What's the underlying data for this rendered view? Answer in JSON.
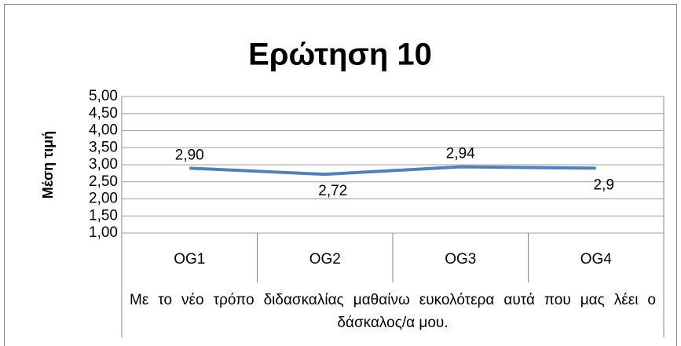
{
  "chart_data": {
    "type": "line",
    "title": "Ερώτηση 10",
    "y_label": "Μέση τιμή",
    "x_label": "Με το νέο τρόπο διδασκαλίας μαθαίνω ευκολότερα αυτά που μας λέει ο δάσκαλος/α μου.",
    "categories": [
      "OG1",
      "OG2",
      "OG3",
      "OG4"
    ],
    "values": [
      2.9,
      2.72,
      2.94,
      2.9
    ],
    "value_labels": [
      "2,90",
      "2,72",
      "2,94",
      "2,9"
    ],
    "color": "#4f81bd",
    "ylim": [
      1,
      5
    ],
    "yticks": [
      {
        "value": 1,
        "label": "1,00"
      },
      {
        "value": 1.5,
        "label": "1,50"
      },
      {
        "value": 2,
        "label": "2,00"
      },
      {
        "value": 2.5,
        "label": "2,50"
      },
      {
        "value": 3,
        "label": "3,00"
      },
      {
        "value": 3.5,
        "label": "3,50"
      },
      {
        "value": 4,
        "label": "4,00"
      },
      {
        "value": 4.5,
        "label": "4,50"
      },
      {
        "value": 5,
        "label": "5,00"
      }
    ],
    "grid": true
  }
}
